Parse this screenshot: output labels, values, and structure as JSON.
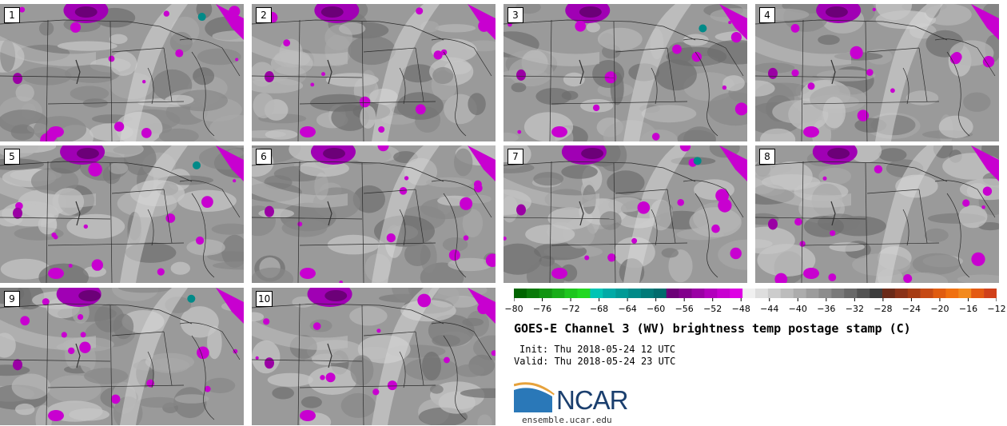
{
  "panels": [
    "1",
    "2",
    "3",
    "4",
    "5",
    "6",
    "7",
    "8",
    "9",
    "10"
  ],
  "colorbar": {
    "ticks": [
      "−80",
      "−76",
      "−72",
      "−68",
      "−64",
      "−60",
      "−56",
      "−52",
      "−48",
      "−44",
      "−40",
      "−36",
      "−32",
      "−28",
      "−24",
      "−20",
      "−16",
      "−12"
    ],
    "colors": [
      "#006400",
      "#0a7a0a",
      "#129412",
      "#18ad18",
      "#1ec61e",
      "#22d822",
      "#00c4b4",
      "#00aaa6",
      "#009a96",
      "#008a88",
      "#007a78",
      "#006b6c",
      "#6c0078",
      "#82008c",
      "#9a00a4",
      "#b200bc",
      "#c800d0",
      "#de00e4",
      "#f0f0f0",
      "#dedede",
      "#cccccc",
      "#bcbcbc",
      "#acacac",
      "#9c9c9c",
      "#8c8c8c",
      "#7a7a7a",
      "#686868",
      "#525252",
      "#3c3c3c",
      "#6a2a18",
      "#8a3218",
      "#a63c14",
      "#c64a14",
      "#e05c10",
      "#f07010",
      "#f38a1e",
      "#e45a12",
      "#d0401a"
    ]
  },
  "title": "GOES-E Channel 3 (WV) brightness temp postage stamp (C)",
  "init": "Init: Thu 2018-05-24 12 UTC",
  "valid": "Valid: Thu 2018-05-24 23 UTC",
  "logo_text": "NCAR",
  "url": "ensemble.ucar.edu"
}
